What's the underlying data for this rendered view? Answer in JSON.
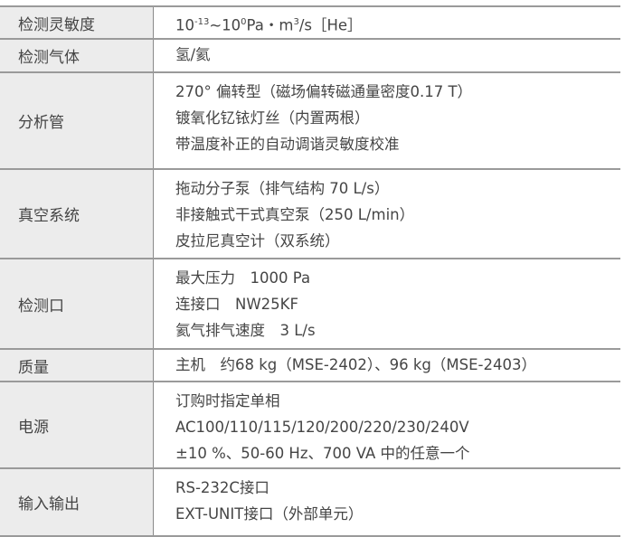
{
  "rows": [
    {
      "label": "检测灵敏度",
      "lines": []
    },
    {
      "label": "检测气体",
      "lines": [
        "氢/氦"
      ]
    },
    {
      "label": "分析管",
      "lines": [
        "270° 偏转型（磁场偏转磁通量密度0.17 T）",
        "镀氧化钇铱灯丝（内置两根）",
        "带温度补正的自动调谐灵敏度校准"
      ]
    },
    {
      "label": "真空系统",
      "lines": [
        "拖动分子泵（排气结构 70 L/s）",
        "非接触式干式真空泵（250 L/min）",
        "皮拉尼真空计（双系统）"
      ]
    },
    {
      "label": "检测口",
      "lines": [
        "最大压力　1000 Pa",
        "连接口　NW25KF",
        "氦气排气速度　3 L/s"
      ]
    },
    {
      "label": "质量",
      "lines": [
        "主机　约68 kg（MSE-2402）、96 kg（MSE-2403）"
      ]
    },
    {
      "label": "电源",
      "lines": [
        "订购时指定单相",
        "AC100/110/115/120/200/220/230/240V",
        "±10 %、50-60 Hz、700 VA 中的任意一个"
      ]
    },
    {
      "label": "输入输出",
      "lines": [
        "RS-232C接口",
        "EXT-UNIT接口（外部单元）"
      ]
    }
  ],
  "sensitivity": {
    "base1": "10",
    "exp1": "-13",
    "sep": "~10",
    "exp2": "0",
    "unit": "Pa・m",
    "exp3": "3",
    "tail": "/s［He］"
  }
}
